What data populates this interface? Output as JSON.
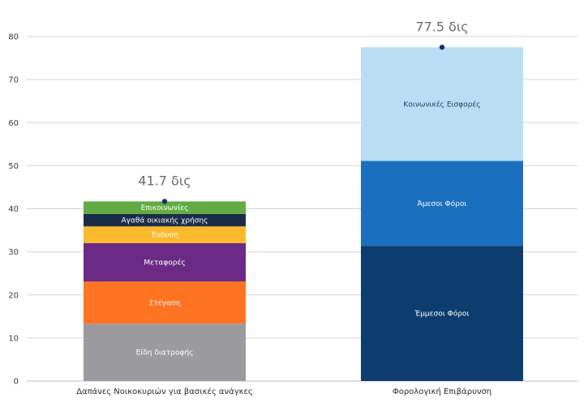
{
  "chart_data": {
    "type": "bar",
    "stacked": true,
    "categories": [
      "Δαπάνες Νοικοκυριών για βασικές ανάγκες",
      "Φορολογική Επιβάρυνση"
    ],
    "ylim": [
      0,
      80
    ],
    "yticks": [
      0,
      10,
      20,
      30,
      40,
      50,
      60,
      70,
      80
    ],
    "grid": true,
    "bars": [
      {
        "total_label": "41.7 δις",
        "total": 41.7,
        "segments": [
          {
            "name": "Είδη διατροφής",
            "value": 13.3,
            "color": "#9b9a9f",
            "text_color": "#ffffff"
          },
          {
            "name": "Στέγαση",
            "value": 9.8,
            "color": "#fe7322",
            "text_color": "#ffffff"
          },
          {
            "name": "Μεταφορές",
            "value": 8.9,
            "color": "#6a2a86",
            "text_color": "#ffffff"
          },
          {
            "name": "Ένδυση",
            "value": 3.9,
            "color": "#fdb92e",
            "text_color": "#ffffff"
          },
          {
            "name": "Αγαθά οικιακής χρήσης",
            "value": 2.9,
            "color": "#1c2e47",
            "text_color": "#ffffff"
          },
          {
            "name": "Επικοινωνίες",
            "value": 2.9,
            "color": "#62ac43",
            "text_color": "#ffffff"
          }
        ]
      },
      {
        "total_label": "77.5 δις",
        "total": 77.5,
        "segments": [
          {
            "name": "Έμμεσοι Φόροι",
            "value": 31.4,
            "color": "#0d3d6e",
            "text_color": "#ffffff"
          },
          {
            "name": "Άμεσοι Φόροι",
            "value": 19.7,
            "color": "#1a6fbe",
            "text_color": "#ffffff"
          },
          {
            "name": "Κοινωνικές Εισφορές",
            "value": 26.4,
            "color": "#b9ddf3",
            "text_color": "#1f3a5c"
          }
        ]
      }
    ],
    "colors": {
      "grid": "#d4d4d4",
      "axis": "#bdbdbd",
      "marker": "#1b3174"
    }
  }
}
